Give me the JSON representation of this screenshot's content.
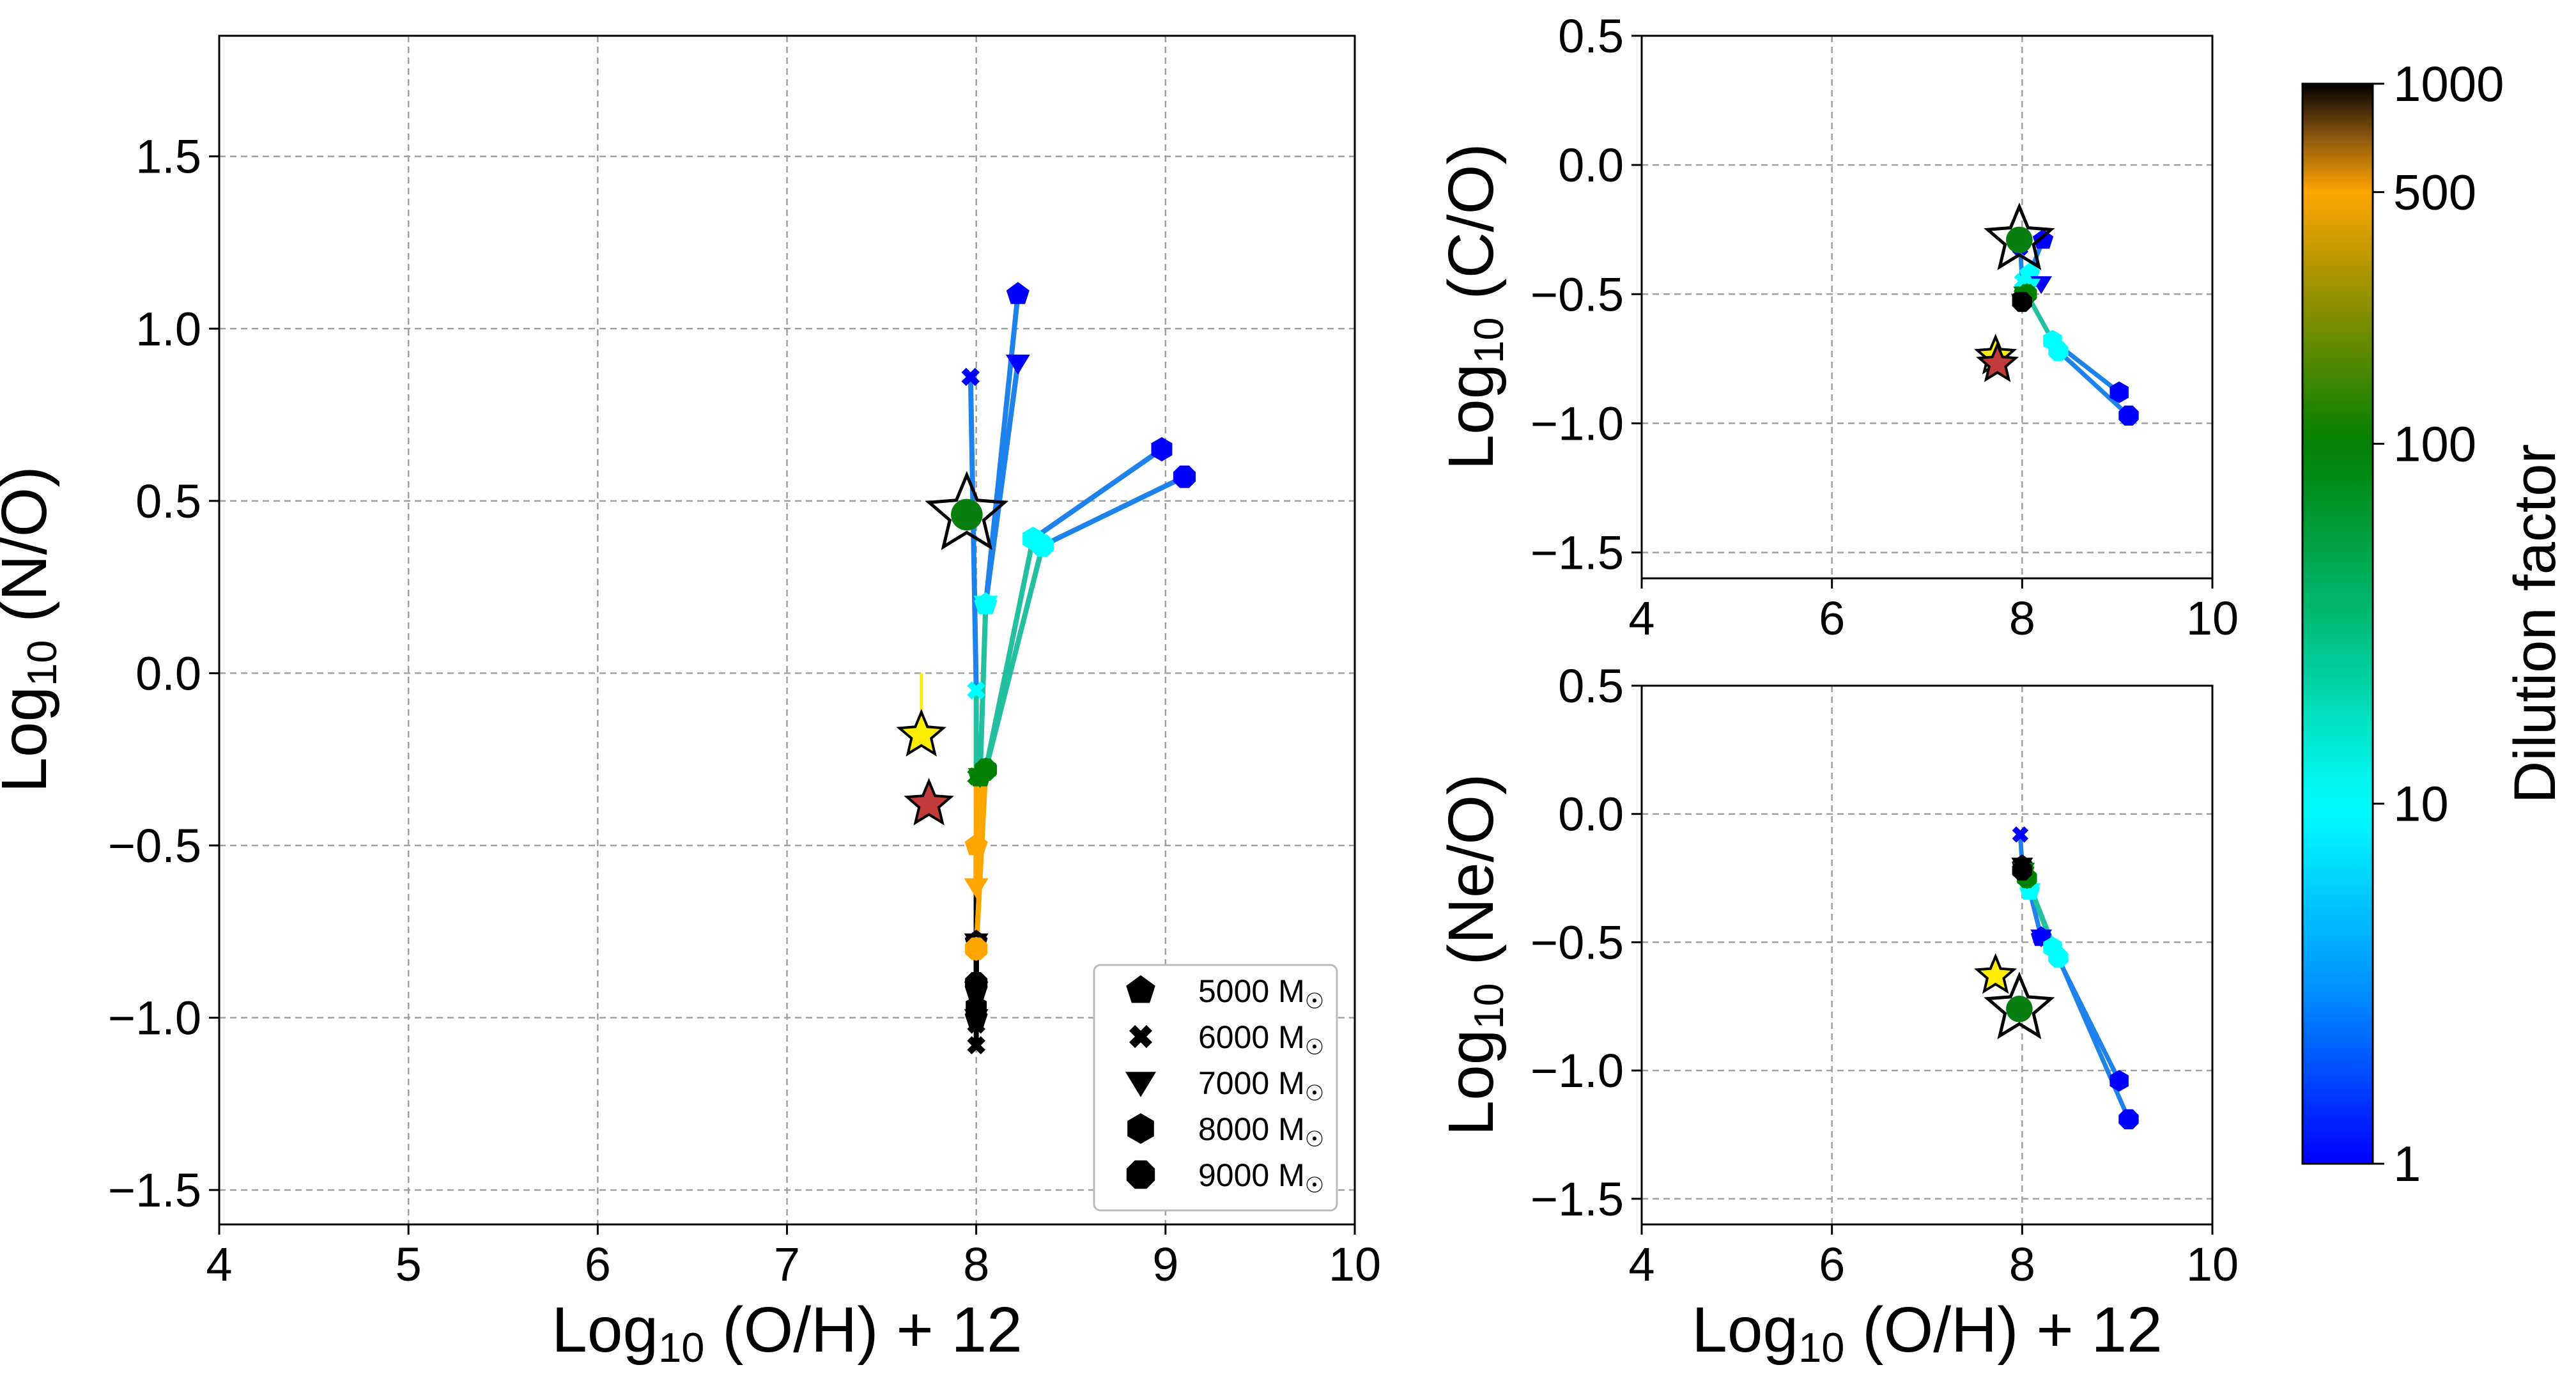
{
  "colors": {
    "grid": "#a0a0a0",
    "track_mid": "#1e82ec",
    "track_low": "#22c0a0",
    "star_yellow": "#ffee00",
    "star_red": "#c23b3b",
    "star_green": "#0a7d10"
  },
  "colorbar": {
    "label": "Dilution factor",
    "ticks": [
      "1",
      "10",
      "100",
      "500",
      "1000"
    ],
    "tick_values": [
      1,
      10,
      100,
      500,
      1000
    ],
    "scale": "log",
    "range": [
      1,
      1000
    ],
    "stops": [
      {
        "v": 1,
        "c": "#0000ff"
      },
      {
        "v": 3,
        "c": "#0090ff"
      },
      {
        "v": 10,
        "c": "#00ffff"
      },
      {
        "v": 30,
        "c": "#00c080"
      },
      {
        "v": 100,
        "c": "#008000"
      },
      {
        "v": 250,
        "c": "#909000"
      },
      {
        "v": 500,
        "c": "#ffa500"
      },
      {
        "v": 750,
        "c": "#7a4a10"
      },
      {
        "v": 1000,
        "c": "#000000"
      }
    ]
  },
  "chart_data": [
    {
      "id": "no",
      "type": "scatter",
      "xlabel": "Log10 (O/H) + 12",
      "ylabel": "Log10 (N/O)",
      "xlim": [
        4,
        10
      ],
      "ylim": [
        -1.6,
        1.85
      ],
      "xticks": [
        4,
        5,
        6,
        7,
        8,
        9,
        10
      ],
      "yticks": [
        -1.5,
        -1.0,
        -0.5,
        0.0,
        0.5,
        1.0,
        1.5
      ],
      "grid": true,
      "legend": {
        "placement": "lower-right",
        "entries": [
          {
            "label": "5000 M☉",
            "marker": "pentagon"
          },
          {
            "label": "6000 M☉",
            "marker": "x"
          },
          {
            "label": "7000 M☉",
            "marker": "triangle"
          },
          {
            "label": "8000 M☉",
            "marker": "hexagon"
          },
          {
            "label": "9000 M☉",
            "marker": "octagon"
          }
        ]
      },
      "tracks": [
        {
          "marker": "pentagon",
          "points": [
            [
              8.22,
              1.1
            ],
            [
              8.05,
              0.2
            ],
            [
              8.02,
              -0.3
            ],
            [
              8.0,
              -0.5
            ],
            [
              8.0,
              -0.78
            ],
            [
              8.0,
              -0.92
            ],
            [
              8.0,
              -1.0
            ]
          ]
        },
        {
          "marker": "x",
          "points": [
            [
              7.97,
              0.86
            ],
            [
              8.0,
              -0.05
            ],
            [
              8.0,
              -0.3
            ],
            [
              8.0,
              -0.8
            ],
            [
              8.0,
              -1.02
            ],
            [
              8.0,
              -1.08
            ]
          ]
        },
        {
          "marker": "triangle",
          "points": [
            [
              8.22,
              0.9
            ],
            [
              8.05,
              0.2
            ],
            [
              8.02,
              -0.3
            ],
            [
              8.0,
              -0.62
            ],
            [
              8.0,
              -0.78
            ],
            [
              8.0,
              -0.92
            ],
            [
              8.0,
              -1.0
            ]
          ]
        },
        {
          "marker": "hexagon",
          "points": [
            [
              8.98,
              0.65
            ],
            [
              8.3,
              0.39
            ],
            [
              8.05,
              -0.28
            ],
            [
              8.0,
              -0.8
            ],
            [
              8.0,
              -0.97
            ]
          ]
        },
        {
          "marker": "octagon",
          "points": [
            [
              9.1,
              0.57
            ],
            [
              8.35,
              0.37
            ],
            [
              8.05,
              -0.28
            ],
            [
              8.0,
              -0.8
            ],
            [
              8.0,
              -0.9
            ]
          ]
        }
      ],
      "dilution": [
        1,
        10,
        100,
        500,
        1000
      ],
      "stars": [
        {
          "x": 7.71,
          "y": -0.18,
          "color": "yellow",
          "size": "small",
          "yerr_up": 0.18
        },
        {
          "x": 7.75,
          "y": -0.38,
          "color": "red",
          "size": "small"
        },
        {
          "x": 7.95,
          "y": 0.46,
          "color": "green",
          "size": "large"
        }
      ]
    },
    {
      "id": "co",
      "type": "scatter",
      "xlabel": "",
      "ylabel": "Log10 (C/O)",
      "xlim": [
        4,
        10
      ],
      "ylim": [
        -1.6,
        0.5
      ],
      "xticks": [
        4,
        6,
        8,
        10
      ],
      "yticks": [
        -1.5,
        -1.0,
        -0.5,
        0.0,
        0.5
      ],
      "grid": true,
      "tracks": [
        {
          "marker": "pentagon",
          "points": [
            [
              8.22,
              -0.29
            ],
            [
              8.08,
              -0.42
            ],
            [
              8.02,
              -0.5
            ],
            [
              8.0,
              -0.52
            ]
          ]
        },
        {
          "marker": "x",
          "points": [
            [
              7.98,
              -0.32
            ],
            [
              8.0,
              -0.45
            ],
            [
              8.0,
              -0.5
            ],
            [
              8.0,
              -0.53
            ]
          ]
        },
        {
          "marker": "triangle",
          "points": [
            [
              8.2,
              -0.46
            ],
            [
              8.08,
              -0.47
            ],
            [
              8.02,
              -0.5
            ],
            [
              8.0,
              -0.53
            ]
          ]
        },
        {
          "marker": "hexagon",
          "points": [
            [
              9.02,
              -0.88
            ],
            [
              8.32,
              -0.68
            ],
            [
              8.05,
              -0.5
            ],
            [
              8.0,
              -0.52
            ]
          ]
        },
        {
          "marker": "octagon",
          "points": [
            [
              9.12,
              -0.97
            ],
            [
              8.38,
              -0.72
            ],
            [
              8.05,
              -0.5
            ],
            [
              8.0,
              -0.53
            ]
          ]
        }
      ],
      "dilution": [
        1,
        10,
        100,
        1000
      ],
      "stars": [
        {
          "x": 7.72,
          "y": -0.74,
          "color": "yellow",
          "size": "small"
        },
        {
          "x": 7.74,
          "y": -0.77,
          "color": "red",
          "size": "small"
        },
        {
          "x": 7.97,
          "y": -0.29,
          "color": "green",
          "size": "large"
        }
      ]
    },
    {
      "id": "neo",
      "type": "scatter",
      "xlabel": "Log10 (O/H) + 12",
      "ylabel": "Log10 (Ne/O)",
      "xlim": [
        4,
        10
      ],
      "ylim": [
        -1.6,
        0.5
      ],
      "xticks": [
        4,
        6,
        8,
        10
      ],
      "yticks": [
        -1.5,
        -1.0,
        -0.5,
        0.0,
        0.5
      ],
      "grid": true,
      "tracks": [
        {
          "marker": "pentagon",
          "points": [
            [
              8.2,
              -0.48
            ],
            [
              8.08,
              -0.3
            ],
            [
              8.02,
              -0.22
            ],
            [
              8.0,
              -0.2
            ]
          ]
        },
        {
          "marker": "x",
          "points": [
            [
              7.98,
              -0.08
            ],
            [
              8.0,
              -0.2
            ],
            [
              8.0,
              -0.22
            ],
            [
              8.0,
              -0.2
            ]
          ]
        },
        {
          "marker": "triangle",
          "points": [
            [
              8.2,
              -0.48
            ],
            [
              8.08,
              -0.3
            ],
            [
              8.02,
              -0.22
            ],
            [
              8.0,
              -0.2
            ]
          ]
        },
        {
          "marker": "hexagon",
          "points": [
            [
              9.02,
              -1.04
            ],
            [
              8.32,
              -0.52
            ],
            [
              8.05,
              -0.25
            ],
            [
              8.0,
              -0.22
            ]
          ]
        },
        {
          "marker": "octagon",
          "points": [
            [
              9.12,
              -1.19
            ],
            [
              8.38,
              -0.56
            ],
            [
              8.05,
              -0.25
            ],
            [
              8.0,
              -0.22
            ]
          ]
        }
      ],
      "dilution": [
        1,
        10,
        100,
        1000
      ],
      "stars": [
        {
          "x": 7.72,
          "y": -0.63,
          "color": "yellow",
          "size": "small"
        },
        {
          "x": 7.97,
          "y": -0.76,
          "color": "green",
          "size": "large"
        }
      ]
    }
  ]
}
